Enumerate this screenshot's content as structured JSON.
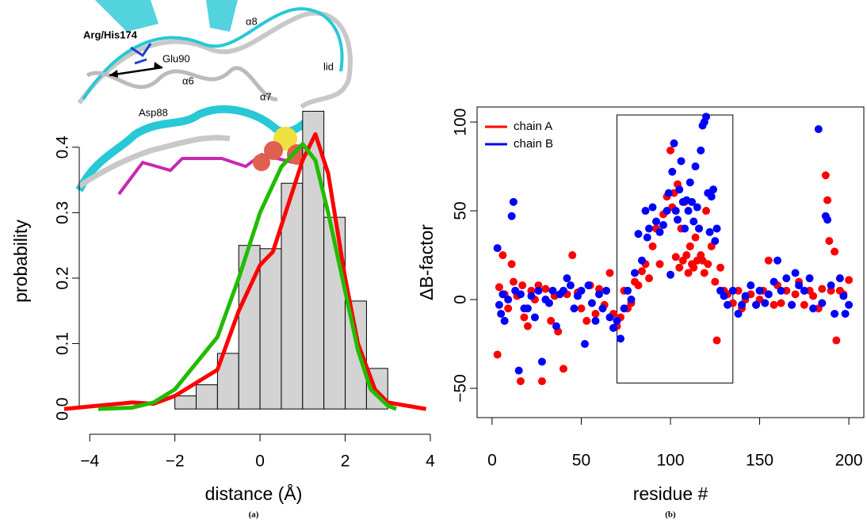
{
  "chart_data": [
    {
      "type": "histogram",
      "panel": "(a)",
      "xlabel": "distance (Å)",
      "ylabel": "probability",
      "bins": [
        -2,
        -1.5,
        -1,
        -0.5,
        0,
        0.5,
        1,
        1.5,
        2,
        2.5,
        3
      ],
      "counts": [
        0.02,
        0.037,
        0.085,
        0.25,
        0.245,
        0.345,
        0.455,
        0.293,
        0.165,
        0.062
      ],
      "color": "#d3d3d3",
      "series": [
        {
          "color": "#ff0000",
          "x": [
            -4.6,
            -4.3,
            -3,
            -2.5,
            -2,
            -1.5,
            -1,
            -0.5,
            0,
            0.3,
            0.6,
            1,
            1.3,
            1.6,
            2,
            2.3,
            2.7,
            3,
            3.9
          ],
          "values": [
            0,
            0.002,
            0.01,
            0.008,
            0.02,
            0.04,
            0.06,
            0.15,
            0.22,
            0.24,
            0.3,
            0.38,
            0.42,
            0.36,
            0.2,
            0.1,
            0.03,
            0.01,
            0
          ]
        },
        {
          "color": "#22bb00",
          "x": [
            -3.8,
            -3,
            -2.5,
            -2,
            -1.5,
            -1,
            -0.5,
            0,
            0.5,
            1,
            1.3,
            1.6,
            2,
            2.3,
            2.6,
            3,
            3.2
          ],
          "values": [
            0,
            0.002,
            0.01,
            0.03,
            0.07,
            0.11,
            0.2,
            0.3,
            0.37,
            0.405,
            0.38,
            0.3,
            0.18,
            0.09,
            0.03,
            0.005,
            0
          ]
        }
      ],
      "xlim": [
        -4.6,
        4.0
      ],
      "ylim": [
        -0.018,
        0.47
      ],
      "xticks": [
        {
          "value": -4,
          "label": "−4"
        },
        {
          "value": -2,
          "label": "−2"
        },
        0,
        2,
        4
      ],
      "yticks": [
        {
          "value": 0,
          "label": "0.0"
        },
        0.1,
        0.2,
        0.3,
        0.4
      ],
      "annotations": [
        "Arg/His174",
        "Glu90",
        "α6",
        "α8",
        "lid",
        "α7",
        "Asp88"
      ]
    },
    {
      "type": "scatter",
      "panel": "(b)",
      "xlabel": "residue #",
      "ylabel": "ΔB-factor",
      "legend": "top-left",
      "series": [
        {
          "name": "chain A",
          "color": "#ff0000",
          "x": [
            3,
            4,
            6,
            7,
            9,
            11,
            12,
            14,
            16,
            17,
            18,
            20,
            22,
            24,
            26,
            28,
            30,
            33,
            35,
            37,
            40,
            42,
            45,
            48,
            50,
            53,
            55,
            58,
            60,
            63,
            66,
            68,
            70,
            72,
            74,
            76,
            78,
            80,
            82,
            84,
            86,
            88,
            90,
            92,
            94,
            96,
            98,
            100,
            101,
            102,
            103,
            104,
            105,
            106,
            107,
            108,
            109,
            110,
            111,
            112,
            113,
            114,
            115,
            116,
            117,
            118,
            119,
            120,
            121,
            123,
            125,
            126,
            128,
            130,
            132,
            135,
            138,
            140,
            142,
            145,
            148,
            150,
            152,
            155,
            158,
            160,
            162,
            165,
            168,
            170,
            172,
            175,
            178,
            180,
            183,
            185,
            187,
            188,
            189,
            190,
            192,
            193,
            195,
            197,
            200
          ],
          "values": [
            -31,
            7,
            25,
            3,
            -5,
            20,
            10,
            2,
            -46,
            8,
            -10,
            -15,
            5,
            0,
            8,
            -46,
            6,
            -12,
            2,
            -18,
            -39,
            3,
            25,
            4,
            -5,
            -12,
            8,
            -8,
            6,
            -3,
            15,
            -8,
            -15,
            -10,
            5,
            -5,
            -2,
            10,
            8,
            16,
            20,
            12,
            30,
            40,
            20,
            48,
            58,
            84,
            52,
            60,
            24,
            65,
            18,
            40,
            22,
            55,
            25,
            15,
            30,
            20,
            18,
            35,
            22,
            40,
            25,
            22,
            15,
            50,
            20,
            30,
            10,
            -23,
            18,
            5,
            3,
            -2,
            5,
            -5,
            0,
            3,
            -3,
            0,
            5,
            22,
            -3,
            8,
            -2,
            5,
            -3,
            3,
            10,
            -3,
            5,
            2,
            -5,
            6,
            70,
            56,
            33,
            5,
            27,
            -23,
            5,
            3,
            11
          ]
        },
        {
          "name": "chain B",
          "color": "#0000ff",
          "x": [
            3,
            4,
            5,
            6,
            7,
            9,
            11,
            12,
            13,
            15,
            16,
            18,
            20,
            22,
            24,
            26,
            28,
            30,
            32,
            34,
            36,
            38,
            40,
            42,
            44,
            46,
            48,
            50,
            52,
            54,
            56,
            58,
            60,
            62,
            64,
            66,
            68,
            70,
            72,
            74,
            76,
            78,
            80,
            82,
            84,
            86,
            87,
            88,
            90,
            92,
            94,
            96,
            98,
            99,
            100,
            101,
            102,
            103,
            104,
            105,
            106,
            107,
            108,
            109,
            110,
            111,
            112,
            113,
            114,
            115,
            116,
            117,
            118,
            119,
            120,
            121,
            122,
            123,
            124,
            125,
            126,
            128,
            130,
            132,
            135,
            138,
            140,
            142,
            145,
            148,
            150,
            153,
            155,
            158,
            160,
            162,
            165,
            168,
            170,
            172,
            175,
            178,
            180,
            183,
            185,
            187,
            188,
            190,
            192,
            195,
            197,
            198,
            200
          ],
          "values": [
            29,
            -3,
            -8,
            3,
            -12,
            0,
            47,
            55,
            5,
            -40,
            3,
            -5,
            -5,
            2,
            -10,
            5,
            -35,
            0,
            -2,
            5,
            -15,
            3,
            5,
            12,
            8,
            -5,
            2,
            5,
            -25,
            8,
            -2,
            -12,
            3,
            -5,
            5,
            -10,
            -16,
            -12,
            -22,
            -5,
            5,
            0,
            15,
            37,
            22,
            50,
            35,
            40,
            52,
            44,
            38,
            42,
            50,
            60,
            14,
            72,
            88,
            50,
            45,
            62,
            78,
            55,
            40,
            56,
            50,
            66,
            55,
            44,
            75,
            52,
            40,
            84,
            98,
            100,
            103,
            60,
            38,
            58,
            62,
            33,
            40,
            5,
            2,
            -3,
            5,
            -8,
            -3,
            2,
            8,
            -3,
            5,
            -2,
            3,
            10,
            22,
            5,
            12,
            -3,
            15,
            8,
            5,
            12,
            -5,
            96,
            -2,
            47,
            45,
            8,
            -8,
            12,
            2,
            -8,
            -3
          ]
        }
      ],
      "highlight_box": {
        "x": [
          70,
          135
        ],
        "y": [
          -47,
          104
        ]
      },
      "xlim": [
        -8.4,
        208.4
      ],
      "ylim": [
        -66.5,
        108.5
      ],
      "xticks": [
        0,
        50,
        100,
        150,
        200
      ],
      "yticks": [
        {
          "value": -50,
          "label": "−50"
        },
        0,
        50,
        100
      ]
    }
  ]
}
